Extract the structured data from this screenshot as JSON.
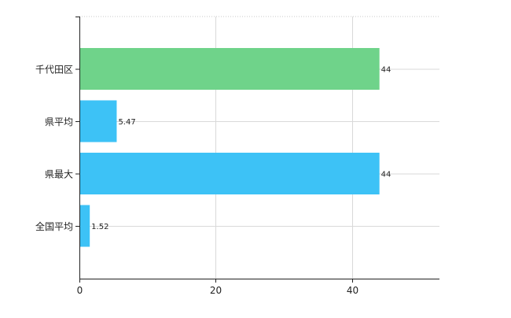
{
  "chart_data": {
    "type": "bar",
    "orientation": "horizontal",
    "categories": [
      "千代田区",
      "県平均",
      "県最大",
      "全国平均"
    ],
    "values": [
      44,
      5.47,
      44,
      1.52
    ],
    "value_labels": [
      "44",
      "5.47",
      "44",
      "1.52"
    ],
    "bar_colors": [
      "#6fd38a",
      "#3dc2f6",
      "#3dc2f6",
      "#3dc2f6"
    ],
    "xlim": [
      0,
      52.8
    ],
    "xticks": [
      0,
      20,
      40
    ],
    "xtick_labels": [
      "0",
      "20",
      "40"
    ],
    "grid": true,
    "title": "",
    "xlabel": "",
    "ylabel": ""
  }
}
